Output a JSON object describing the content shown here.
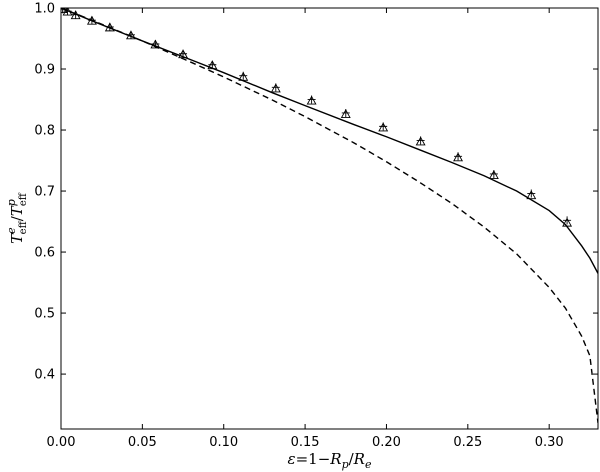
{
  "chart_data": {
    "type": "line",
    "title": "",
    "xlabel": "ε=1−R_p/R_e",
    "ylabel": "T_eff^e/T_eff^p",
    "xlabel_parts": {
      "eps": "ε",
      "eq": "=1−",
      "rp": "R",
      "rp_sub": "p",
      "slash": "/",
      "re": "R",
      "re_sub": "e"
    },
    "ylabel_parts": {
      "t1": "T",
      "t1_sup": "e",
      "t1_sub": "eff",
      "slash": "/",
      "t2": "T",
      "t2_sup": "p",
      "t2_sub": "eff"
    },
    "xlim": [
      0.0,
      0.33
    ],
    "ylim": [
      0.31,
      1.0
    ],
    "xticks": [
      0.0,
      0.05,
      0.1,
      0.15,
      0.2,
      0.25,
      0.3
    ],
    "xtick_labels": [
      "0.00",
      "0.05",
      "0.10",
      "0.15",
      "0.20",
      "0.25",
      "0.30"
    ],
    "yticks": [
      0.4,
      0.5,
      0.6,
      0.7,
      0.8,
      0.9,
      1.0
    ],
    "ytick_labels": [
      "0.4",
      "0.5",
      "0.6",
      "0.7",
      "0.8",
      "0.9",
      "1.0"
    ],
    "grid": false,
    "series": [
      {
        "style": "solid",
        "x": [
          0.0,
          0.02,
          0.05,
          0.08,
          0.1,
          0.13,
          0.15,
          0.18,
          0.2,
          0.22,
          0.24,
          0.26,
          0.28,
          0.3,
          0.31,
          0.32,
          0.325,
          0.33
        ],
        "y": [
          1.0,
          0.978,
          0.946,
          0.915,
          0.894,
          0.861,
          0.84,
          0.809,
          0.789,
          0.768,
          0.747,
          0.725,
          0.7,
          0.668,
          0.645,
          0.61,
          0.59,
          0.565
        ]
      },
      {
        "style": "dashed",
        "x": [
          0.0,
          0.02,
          0.05,
          0.08,
          0.1,
          0.13,
          0.15,
          0.18,
          0.2,
          0.22,
          0.24,
          0.26,
          0.28,
          0.3,
          0.31,
          0.32,
          0.325,
          0.33
        ],
        "y": [
          1.0,
          0.979,
          0.946,
          0.911,
          0.887,
          0.849,
          0.822,
          0.779,
          0.748,
          0.715,
          0.68,
          0.641,
          0.597,
          0.542,
          0.508,
          0.462,
          0.43,
          0.32
        ]
      },
      {
        "style": "markers-triangle",
        "x": [
          0.001,
          0.004,
          0.009,
          0.019,
          0.03,
          0.043,
          0.058,
          0.075,
          0.093,
          0.112,
          0.132,
          0.154,
          0.175,
          0.198,
          0.221,
          0.244,
          0.266,
          0.289,
          0.311
        ],
        "y": [
          0.998,
          0.994,
          0.988,
          0.979,
          0.968,
          0.955,
          0.94,
          0.924,
          0.906,
          0.887,
          0.868,
          0.848,
          0.826,
          0.804,
          0.781,
          0.755,
          0.726,
          0.693,
          0.648
        ]
      },
      {
        "style": "markers-plus",
        "x": [
          0.001,
          0.004,
          0.009,
          0.019,
          0.03,
          0.043,
          0.058,
          0.075,
          0.093,
          0.112,
          0.132,
          0.154,
          0.175,
          0.198,
          0.221,
          0.244,
          0.266,
          0.289,
          0.311
        ],
        "y": [
          0.998,
          0.995,
          0.989,
          0.98,
          0.969,
          0.956,
          0.941,
          0.925,
          0.907,
          0.889,
          0.87,
          0.85,
          0.828,
          0.806,
          0.783,
          0.757,
          0.728,
          0.696,
          0.652
        ]
      }
    ]
  }
}
